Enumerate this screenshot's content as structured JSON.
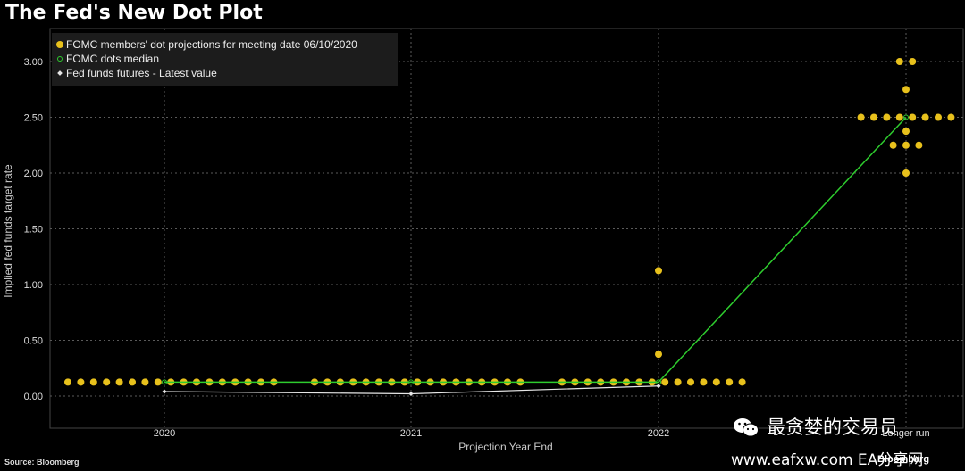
{
  "header": {
    "title": "The Fed's New Dot Plot"
  },
  "footer": {
    "source": "Source: Bloomberg",
    "brand": "Bloomberg"
  },
  "watermark": {
    "line1": "最贪婪的交易员",
    "line2": "www.eafxw.com   EA分享网"
  },
  "colors": {
    "dots": "#e8c11c",
    "median": "#2ecc2e",
    "futures": "#e6e6e6",
    "background": "#000000",
    "grid": "#5a5a5a"
  },
  "chart_data": {
    "type": "scatter",
    "ylabel": "Implied fed funds target rate",
    "xlabel": "Projection Year End",
    "ylim": [
      -0.1,
      3.2
    ],
    "yticks": [
      "3.00",
      "2.50",
      "2.00",
      "1.50",
      "1.00",
      "0.50",
      "0.00"
    ],
    "xticks": [
      "2020",
      "2021",
      "2022",
      "Longer run"
    ],
    "legend": {
      "position": "top-left",
      "entries": [
        "FOMC members' dot projections for meeting date 06/10/2020",
        "FOMC dots median",
        "Fed funds futures - Latest value"
      ]
    },
    "series": [
      {
        "name": "FOMC members' dot projections for meeting date 06/10/2020",
        "marker": "dot",
        "groups": [
          {
            "x": "2020",
            "values": [
              0.125,
              0.125,
              0.125,
              0.125,
              0.125,
              0.125,
              0.125,
              0.125,
              0.125,
              0.125,
              0.125,
              0.125,
              0.125,
              0.125,
              0.125,
              0.125,
              0.125
            ]
          },
          {
            "x": "2021",
            "values": [
              0.125,
              0.125,
              0.125,
              0.125,
              0.125,
              0.125,
              0.125,
              0.125,
              0.125,
              0.125,
              0.125,
              0.125,
              0.125,
              0.125,
              0.125,
              0.125,
              0.125
            ]
          },
          {
            "x": "2022",
            "values": [
              0.125,
              0.125,
              0.125,
              0.125,
              0.125,
              0.125,
              0.125,
              0.125,
              0.125,
              0.125,
              0.125,
              0.125,
              0.125,
              0.125,
              0.125,
              1.125,
              0.375
            ]
          },
          {
            "x": "Longer run",
            "values": [
              3.0,
              3.0,
              2.75,
              2.5,
              2.5,
              2.5,
              2.5,
              2.5,
              2.5,
              2.5,
              2.5,
              2.375,
              2.25,
              2.25,
              2.25,
              2.0
            ]
          }
        ]
      },
      {
        "name": "FOMC dots median",
        "x": [
          "2020",
          "2021",
          "2022",
          "Longer run"
        ],
        "values": [
          0.125,
          0.125,
          0.125,
          2.5
        ]
      },
      {
        "name": "Fed funds futures - Latest value",
        "x": [
          "2020",
          "2021",
          "2022"
        ],
        "values": [
          0.04,
          0.02,
          0.09
        ]
      }
    ]
  }
}
